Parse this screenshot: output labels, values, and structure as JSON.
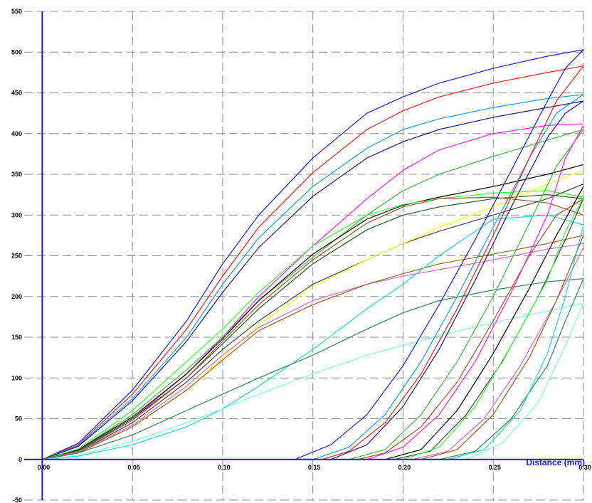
{
  "chart_data": {
    "type": "line",
    "xlabel": "Distance (mm)",
    "ylabel": "",
    "xlim": [
      -0.01,
      0.3
    ],
    "ylim": [
      -50,
      550
    ],
    "x_ticks": [
      0.0,
      0.05,
      0.1,
      0.15,
      0.2,
      0.25,
      0.3
    ],
    "x_tick_labels": [
      "0.00",
      "0.05",
      "0.10",
      "0.15",
      "0.20",
      "0.25",
      "0.30"
    ],
    "y_ticks": [
      -50,
      0,
      50,
      100,
      150,
      200,
      250,
      300,
      350,
      400,
      450,
      500,
      550
    ],
    "y_tick_labels": [
      "-50",
      "0",
      "50",
      "100",
      "150",
      "200",
      "250",
      "300",
      "350",
      "400",
      "450",
      "500",
      "550"
    ],
    "grid": true,
    "legend": "none",
    "series": [
      {
        "color": "#1a1ae6",
        "x": [
          0,
          0.02,
          0.05,
          0.08,
          0.1,
          0.12,
          0.15,
          0.18,
          0.2,
          0.22,
          0.25,
          0.28,
          0.3
        ],
        "y": [
          0,
          20,
          85,
          170,
          240,
          300,
          370,
          425,
          445,
          462,
          480,
          495,
          503
        ]
      },
      {
        "color": "#ff1a1a",
        "x": [
          0,
          0.02,
          0.05,
          0.08,
          0.1,
          0.12,
          0.15,
          0.18,
          0.2,
          0.22,
          0.25,
          0.28,
          0.3
        ],
        "y": [
          0,
          18,
          80,
          160,
          225,
          285,
          352,
          405,
          428,
          445,
          462,
          475,
          483
        ]
      },
      {
        "color": "#1a9cff",
        "x": [
          0,
          0.02,
          0.05,
          0.08,
          0.1,
          0.12,
          0.15,
          0.18,
          0.2,
          0.22,
          0.25,
          0.28,
          0.3
        ],
        "y": [
          0,
          17,
          75,
          150,
          215,
          272,
          335,
          382,
          405,
          418,
          432,
          443,
          448
        ]
      },
      {
        "color": "#1a1a80",
        "x": [
          0,
          0.02,
          0.05,
          0.08,
          0.1,
          0.12,
          0.15,
          0.18,
          0.2,
          0.22,
          0.25,
          0.28,
          0.3
        ],
        "y": [
          0,
          16,
          72,
          145,
          205,
          260,
          323,
          370,
          390,
          405,
          420,
          432,
          440
        ]
      },
      {
        "color": "#ff1aff",
        "x": [
          0,
          0.02,
          0.05,
          0.08,
          0.1,
          0.12,
          0.15,
          0.18,
          0.2,
          0.22,
          0.25,
          0.28,
          0.3
        ],
        "y": [
          0,
          10,
          50,
          105,
          150,
          200,
          262,
          320,
          355,
          380,
          400,
          410,
          412
        ]
      },
      {
        "color": "#3cb83c",
        "x": [
          0,
          0.02,
          0.05,
          0.08,
          0.1,
          0.12,
          0.15,
          0.18,
          0.2,
          0.22,
          0.25,
          0.28,
          0.3
        ],
        "y": [
          0,
          12,
          55,
          110,
          150,
          195,
          248,
          300,
          330,
          350,
          372,
          392,
          405
        ]
      },
      {
        "color": "#000000",
        "x": [
          0,
          0.02,
          0.05,
          0.08,
          0.1,
          0.12,
          0.15,
          0.18,
          0.2,
          0.22,
          0.25,
          0.28,
          0.3
        ],
        "y": [
          0,
          12,
          52,
          105,
          148,
          195,
          252,
          295,
          312,
          322,
          335,
          350,
          362
        ]
      },
      {
        "color": "#33ff33",
        "x": [
          0,
          0.02,
          0.05,
          0.08,
          0.1,
          0.12,
          0.15,
          0.18,
          0.2,
          0.22,
          0.25,
          0.28,
          0.3
        ],
        "y": [
          0,
          13,
          60,
          120,
          160,
          205,
          262,
          300,
          313,
          320,
          327,
          330,
          322
        ]
      },
      {
        "color": "#1a5c1a",
        "x": [
          0,
          0.02,
          0.05,
          0.08,
          0.1,
          0.12,
          0.15,
          0.18,
          0.2,
          0.22,
          0.25,
          0.28,
          0.3
        ],
        "y": [
          0,
          11,
          50,
          100,
          142,
          185,
          240,
          282,
          300,
          310,
          320,
          325,
          320
        ]
      },
      {
        "color": "#a0522d",
        "x": [
          0,
          0.02,
          0.05,
          0.08,
          0.1,
          0.12,
          0.15,
          0.18,
          0.2,
          0.22,
          0.25,
          0.28,
          0.3
        ],
        "y": [
          0,
          10,
          48,
          100,
          145,
          190,
          245,
          290,
          310,
          320,
          322,
          315,
          300
        ]
      },
      {
        "color": "#404040",
        "x": [
          0,
          0.02,
          0.05,
          0.08,
          0.1,
          0.12,
          0.15,
          0.18,
          0.2,
          0.22,
          0.25,
          0.28,
          0.3
        ],
        "y": [
          0,
          9,
          45,
          95,
          135,
          170,
          215,
          245,
          265,
          280,
          300,
          320,
          338
        ]
      },
      {
        "color": "#ffff1a",
        "x": [
          0,
          0.02,
          0.05,
          0.08,
          0.1,
          0.12,
          0.15,
          0.18,
          0.2,
          0.22,
          0.25,
          0.28,
          0.3
        ],
        "y": [
          0,
          8,
          40,
          85,
          125,
          165,
          212,
          245,
          265,
          285,
          310,
          338,
          355
        ]
      },
      {
        "color": "#d966d9",
        "x": [
          0,
          0.02,
          0.05,
          0.08,
          0.1,
          0.12,
          0.15,
          0.18,
          0.2,
          0.22,
          0.25,
          0.28,
          0.3
        ],
        "y": [
          0,
          9,
          42,
          90,
          128,
          162,
          195,
          215,
          225,
          233,
          245,
          258,
          265
        ]
      },
      {
        "color": "#8b6914",
        "x": [
          0,
          0.02,
          0.05,
          0.08,
          0.1,
          0.12,
          0.15,
          0.18,
          0.2,
          0.22,
          0.25,
          0.28,
          0.3
        ],
        "y": [
          0,
          8,
          40,
          85,
          122,
          158,
          190,
          215,
          228,
          240,
          252,
          265,
          275
        ]
      },
      {
        "color": "#1ad9d9",
        "x": [
          0,
          0.02,
          0.05,
          0.08,
          0.1,
          0.12,
          0.15,
          0.18,
          0.2,
          0.22,
          0.25,
          0.28,
          0.3
        ],
        "y": [
          0,
          4,
          18,
          40,
          62,
          90,
          135,
          185,
          215,
          250,
          295,
          300,
          288
        ]
      },
      {
        "color": "#2e8b57",
        "x": [
          0,
          0.02,
          0.05,
          0.08,
          0.1,
          0.12,
          0.15,
          0.18,
          0.2,
          0.22,
          0.25,
          0.28,
          0.3
        ],
        "y": [
          0,
          8,
          30,
          60,
          80,
          100,
          128,
          160,
          180,
          195,
          208,
          218,
          222
        ]
      },
      {
        "color": "#7fffd4",
        "x": [
          0,
          0.02,
          0.05,
          0.08,
          0.1,
          0.12,
          0.15,
          0.18,
          0.2,
          0.22,
          0.25,
          0.28,
          0.3
        ],
        "y": [
          0,
          5,
          22,
          45,
          62,
          80,
          105,
          128,
          140,
          152,
          168,
          182,
          192
        ]
      },
      {
        "color": "#1a1ae6",
        "x": [
          0,
          0.14,
          0.16,
          0.18,
          0.2,
          0.22,
          0.24,
          0.26,
          0.28,
          0.29,
          0.3
        ],
        "y": [
          0,
          0,
          18,
          55,
          115,
          190,
          270,
          355,
          440,
          480,
          503
        ]
      },
      {
        "color": "#1a9cff",
        "x": [
          0,
          0.15,
          0.17,
          0.19,
          0.21,
          0.23,
          0.25,
          0.27,
          0.285,
          0.3
        ],
        "y": [
          0,
          0,
          15,
          55,
          120,
          200,
          285,
          370,
          425,
          448
        ]
      },
      {
        "color": "#ff1a1a",
        "x": [
          0,
          0.155,
          0.17,
          0.19,
          0.21,
          0.23,
          0.25,
          0.27,
          0.285,
          0.3
        ],
        "y": [
          0,
          0,
          10,
          45,
          105,
          185,
          275,
          370,
          440,
          483
        ]
      },
      {
        "color": "#1a1a80",
        "x": [
          0,
          0.16,
          0.18,
          0.2,
          0.22,
          0.24,
          0.26,
          0.28,
          0.29,
          0.3
        ],
        "y": [
          0,
          0,
          18,
          65,
          135,
          220,
          310,
          395,
          425,
          440
        ]
      },
      {
        "color": "#3cb83c",
        "x": [
          0,
          0.17,
          0.19,
          0.21,
          0.23,
          0.25,
          0.27,
          0.285,
          0.3
        ],
        "y": [
          0,
          0,
          12,
          55,
          120,
          200,
          290,
          360,
          405
        ]
      },
      {
        "color": "#a0522d",
        "x": [
          0,
          0.175,
          0.19,
          0.21,
          0.23,
          0.25,
          0.27,
          0.285,
          0.3
        ],
        "y": [
          0,
          0,
          8,
          40,
          95,
          170,
          250,
          300,
          320
        ]
      },
      {
        "color": "#ff1aff",
        "x": [
          0,
          0.18,
          0.2,
          0.22,
          0.24,
          0.26,
          0.28,
          0.29,
          0.3
        ],
        "y": [
          0,
          0,
          15,
          55,
          120,
          205,
          300,
          370,
          410
        ]
      },
      {
        "color": "#000000",
        "x": [
          0,
          0.19,
          0.21,
          0.23,
          0.25,
          0.27,
          0.285,
          0.3
        ],
        "y": [
          0,
          0,
          12,
          60,
          130,
          210,
          275,
          335
        ]
      },
      {
        "color": "#404040",
        "x": [
          0,
          0.195,
          0.215,
          0.235,
          0.255,
          0.275,
          0.29,
          0.3
        ],
        "y": [
          0,
          0,
          10,
          55,
          120,
          200,
          270,
          320
        ]
      },
      {
        "color": "#33ff33",
        "x": [
          0,
          0.2,
          0.22,
          0.24,
          0.26,
          0.28,
          0.29,
          0.3
        ],
        "y": [
          0,
          0,
          15,
          65,
          140,
          220,
          280,
          322
        ]
      },
      {
        "color": "#d966d9",
        "x": [
          0,
          0.205,
          0.225,
          0.245,
          0.265,
          0.285,
          0.3
        ],
        "y": [
          0,
          0,
          10,
          50,
          115,
          195,
          260
        ]
      },
      {
        "color": "#8b6914",
        "x": [
          0,
          0.21,
          0.23,
          0.25,
          0.27,
          0.285,
          0.3
        ],
        "y": [
          0,
          0,
          12,
          55,
          125,
          195,
          275
        ]
      },
      {
        "color": "#2e8b57",
        "x": [
          0,
          0.22,
          0.24,
          0.26,
          0.28,
          0.29,
          0.3
        ],
        "y": [
          0,
          0,
          10,
          50,
          115,
          170,
          222
        ]
      },
      {
        "color": "#1ad9d9",
        "x": [
          0,
          0.225,
          0.245,
          0.265,
          0.28,
          0.29,
          0.3
        ],
        "y": [
          0,
          0,
          12,
          60,
          130,
          200,
          288
        ]
      },
      {
        "color": "#7fffd4",
        "x": [
          0,
          0.235,
          0.255,
          0.275,
          0.29,
          0.3
        ],
        "y": [
          0,
          0,
          20,
          70,
          140,
          192
        ]
      }
    ]
  }
}
